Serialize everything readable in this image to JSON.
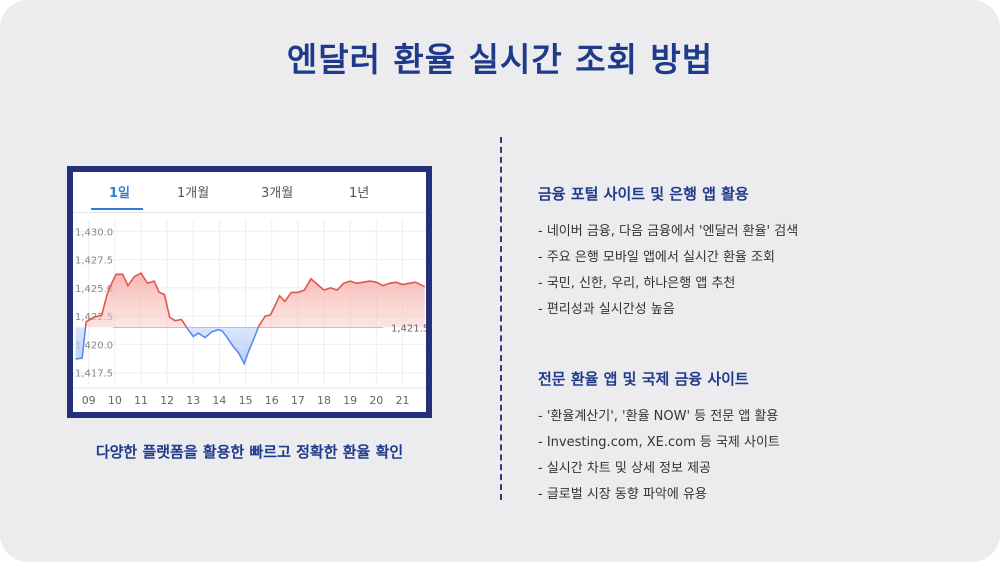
{
  "title": "엔달러 환율 실시간 조회 방법",
  "chart_card": {
    "tabs": [
      {
        "label": "1일",
        "active": true
      },
      {
        "label": "1개월",
        "active": false
      },
      {
        "label": "3개월",
        "active": false
      },
      {
        "label": "1년",
        "active": false
      }
    ],
    "caption": "다양한 플랫폼을 활용한 빠르고 정확한 환율 확인"
  },
  "section1": {
    "heading": "금융 포털 사이트 및 은행 앱 활용",
    "bullets": [
      "- 네이버 금융, 다음 금융에서 '엔달러 환율' 검색",
      "- 주요 은행 모바일 앱에서 실시간 환율 조회",
      "- 국민, 신한, 우리, 하나은행 앱 추천",
      "- 편리성과 실시간성 높음"
    ]
  },
  "section2": {
    "heading": "전문 환율 앱 및 국제 금융 사이트",
    "bullets": [
      "- '환율계산기', '환율 NOW' 등 전문 앱 활용",
      "- Investing.com, XE.com 등 국제 사이트",
      "- 실시간 차트 및 상세 정보 제공",
      "- 글로벌 시장 동향 파악에 유용"
    ]
  },
  "colors": {
    "title": "#1f3a8a",
    "frame": "#25307a",
    "above_line": "#e2574c",
    "below_line": "#5b8def",
    "active_tab": "#2f7fd6"
  },
  "chart_data": {
    "type": "line",
    "baseline": 1421.5,
    "baseline_label": "1,421.5",
    "y_ticks": [
      "1,430.0",
      "1,427.5",
      "1,425.0",
      "1,422.5",
      "1,420.0",
      "1,417.5"
    ],
    "y_values": [
      1430.0,
      1427.5,
      1425.0,
      1422.5,
      1420.0,
      1417.5
    ],
    "ylim": [
      1416.5,
      1431.0
    ],
    "x_ticks": [
      "09",
      "10",
      "11",
      "12",
      "13",
      "14",
      "15",
      "16",
      "17",
      "18",
      "19",
      "20",
      "21"
    ],
    "x_tick_positions": [
      9,
      10,
      11,
      12,
      13,
      14,
      15,
      16,
      17,
      18,
      19,
      20,
      21
    ],
    "xlim": [
      8.4,
      21.9
    ],
    "points": [
      [
        8.5,
        1418.7
      ],
      [
        8.75,
        1418.8
      ],
      [
        8.9,
        1422.0
      ],
      [
        9.2,
        1422.4
      ],
      [
        9.5,
        1422.6
      ],
      [
        9.7,
        1424.4
      ],
      [
        9.9,
        1425.5
      ],
      [
        10.05,
        1426.2
      ],
      [
        10.3,
        1426.2
      ],
      [
        10.5,
        1425.2
      ],
      [
        10.75,
        1426.0
      ],
      [
        11.0,
        1426.3
      ],
      [
        11.25,
        1425.4
      ],
      [
        11.5,
        1425.6
      ],
      [
        11.7,
        1424.6
      ],
      [
        11.9,
        1424.4
      ],
      [
        12.1,
        1422.4
      ],
      [
        12.3,
        1422.1
      ],
      [
        12.55,
        1422.2
      ],
      [
        12.8,
        1421.3
      ],
      [
        13.0,
        1420.7
      ],
      [
        13.2,
        1421.0
      ],
      [
        13.45,
        1420.6
      ],
      [
        13.7,
        1421.1
      ],
      [
        13.95,
        1421.3
      ],
      [
        14.1,
        1421.2
      ],
      [
        14.3,
        1420.6
      ],
      [
        14.5,
        1419.9
      ],
      [
        14.75,
        1419.2
      ],
      [
        14.95,
        1418.3
      ],
      [
        15.1,
        1419.3
      ],
      [
        15.3,
        1420.4
      ],
      [
        15.5,
        1421.6
      ],
      [
        15.75,
        1422.5
      ],
      [
        15.95,
        1422.6
      ],
      [
        16.1,
        1423.3
      ],
      [
        16.3,
        1424.3
      ],
      [
        16.5,
        1423.8
      ],
      [
        16.75,
        1424.6
      ],
      [
        17.0,
        1424.6
      ],
      [
        17.25,
        1424.8
      ],
      [
        17.5,
        1425.8
      ],
      [
        17.75,
        1425.3
      ],
      [
        18.0,
        1424.8
      ],
      [
        18.25,
        1425.0
      ],
      [
        18.5,
        1424.8
      ],
      [
        18.75,
        1425.4
      ],
      [
        19.0,
        1425.6
      ],
      [
        19.25,
        1425.4
      ],
      [
        19.5,
        1425.5
      ],
      [
        19.75,
        1425.6
      ],
      [
        20.0,
        1425.5
      ],
      [
        20.25,
        1425.2
      ],
      [
        20.5,
        1425.4
      ],
      [
        20.75,
        1425.5
      ],
      [
        21.0,
        1425.3
      ],
      [
        21.25,
        1425.4
      ],
      [
        21.5,
        1425.5
      ],
      [
        21.85,
        1425.1
      ]
    ]
  }
}
